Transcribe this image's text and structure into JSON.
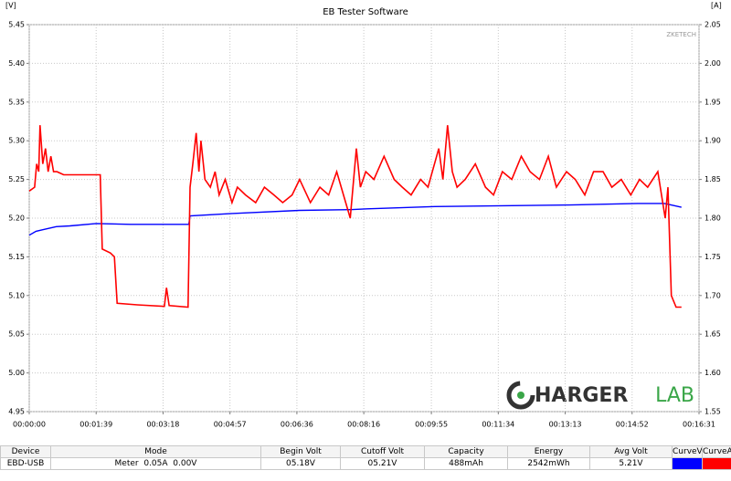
{
  "chart_data": {
    "type": "line",
    "title": "EB Tester Software",
    "y_unit": "[V]",
    "y2_unit": "[A]",
    "watermarks": [
      "ZKETECH",
      "HARGER",
      "LAB"
    ],
    "xlim": [
      0,
      991
    ],
    "xticks": [
      {
        "value": 0,
        "label": "00:00:00"
      },
      {
        "value": 99,
        "label": "00:01:39"
      },
      {
        "value": 198,
        "label": "00:03:18"
      },
      {
        "value": 297,
        "label": "00:04:57"
      },
      {
        "value": 396,
        "label": "00:06:36"
      },
      {
        "value": 495,
        "label": "00:08:16"
      },
      {
        "value": 595,
        "label": "00:09:55"
      },
      {
        "value": 694,
        "label": "00:11:34"
      },
      {
        "value": 793,
        "label": "00:13:13"
      },
      {
        "value": 892,
        "label": "00:14:52"
      },
      {
        "value": 991,
        "label": "00:16:31"
      }
    ],
    "ylim": [
      4.95,
      5.45
    ],
    "yticks": [
      {
        "value": 4.95,
        "label": "4.95"
      },
      {
        "value": 5.0,
        "label": "5.00"
      },
      {
        "value": 5.05,
        "label": "5.05"
      },
      {
        "value": 5.1,
        "label": "5.10"
      },
      {
        "value": 5.15,
        "label": "5.15"
      },
      {
        "value": 5.2,
        "label": "5.20"
      },
      {
        "value": 5.25,
        "label": "5.25"
      },
      {
        "value": 5.3,
        "label": "5.30"
      },
      {
        "value": 5.35,
        "label": "5.35"
      },
      {
        "value": 5.4,
        "label": "5.40"
      },
      {
        "value": 5.45,
        "label": "5.45"
      }
    ],
    "y2lim": [
      1.55,
      2.05
    ],
    "y2ticks": [
      {
        "value": 1.55,
        "label": "1.55"
      },
      {
        "value": 1.6,
        "label": "1.60"
      },
      {
        "value": 1.65,
        "label": "1.65"
      },
      {
        "value": 1.7,
        "label": "1.70"
      },
      {
        "value": 1.75,
        "label": "1.75"
      },
      {
        "value": 1.8,
        "label": "1.80"
      },
      {
        "value": 1.85,
        "label": "1.85"
      },
      {
        "value": 1.9,
        "label": "1.90"
      },
      {
        "value": 1.95,
        "label": "1.95"
      },
      {
        "value": 2.0,
        "label": "2.00"
      },
      {
        "value": 2.05,
        "label": "2.05"
      }
    ],
    "grid": true,
    "series": [
      {
        "name": "CurveV",
        "color": "#0000ff",
        "axis": "y",
        "x": [
          0,
          10,
          20,
          40,
          60,
          99,
          150,
          236,
          238,
          300,
          400,
          475,
          500,
          600,
          700,
          800,
          900,
          940,
          965
        ],
        "values": [
          5.178,
          5.183,
          5.185,
          5.189,
          5.19,
          5.193,
          5.192,
          5.192,
          5.203,
          5.206,
          5.21,
          5.211,
          5.212,
          5.215,
          5.216,
          5.217,
          5.219,
          5.219,
          5.214
        ]
      },
      {
        "name": "CurveA",
        "color": "#ff0000",
        "axis": "y2",
        "x": [
          0,
          8,
          11,
          14,
          16,
          20,
          24,
          28,
          32,
          36,
          41,
          51,
          65,
          78,
          105,
          108,
          120,
          126,
          130,
          160,
          200,
          203,
          207,
          235,
          238,
          242,
          247,
          251,
          254,
          260,
          268,
          275,
          281,
          290,
          300,
          308,
          320,
          335,
          348,
          362,
          375,
          389,
          400,
          416,
          430,
          443,
          455,
          465,
          475,
          484,
          490,
          498,
          510,
          525,
          540,
          552,
          565,
          579,
          590,
          606,
          612,
          619,
          626,
          633,
          645,
          660,
          675,
          687,
          700,
          714,
          728,
          741,
          755,
          768,
          780,
          795,
          808,
          822,
          835,
          849,
          862,
          876,
          890,
          903,
          915,
          930,
          941,
          945,
          950,
          957,
          965
        ],
        "values": [
          1.835,
          1.84,
          1.87,
          1.86,
          1.92,
          1.87,
          1.89,
          1.86,
          1.88,
          1.86,
          1.86,
          1.856,
          1.856,
          1.856,
          1.856,
          1.76,
          1.755,
          1.75,
          1.69,
          1.688,
          1.686,
          1.71,
          1.687,
          1.685,
          1.84,
          1.87,
          1.91,
          1.86,
          1.9,
          1.85,
          1.84,
          1.86,
          1.83,
          1.85,
          1.82,
          1.84,
          1.83,
          1.82,
          1.84,
          1.83,
          1.82,
          1.83,
          1.85,
          1.82,
          1.84,
          1.83,
          1.86,
          1.83,
          1.8,
          1.89,
          1.84,
          1.86,
          1.85,
          1.88,
          1.85,
          1.84,
          1.83,
          1.85,
          1.84,
          1.89,
          1.85,
          1.92,
          1.86,
          1.84,
          1.85,
          1.87,
          1.84,
          1.83,
          1.86,
          1.85,
          1.88,
          1.86,
          1.85,
          1.88,
          1.84,
          1.86,
          1.85,
          1.83,
          1.86,
          1.86,
          1.84,
          1.85,
          1.83,
          1.85,
          1.84,
          1.86,
          1.8,
          1.84,
          1.7,
          1.685,
          1.685
        ]
      }
    ]
  },
  "table": {
    "headers": [
      "Device",
      "Mode",
      "Begin Volt",
      "Cutoff Volt",
      "Capacity",
      "Energy",
      "Avg Volt",
      "CurveV",
      "CurveA"
    ],
    "rows": [
      [
        "EBD-USB",
        "Meter  0.05A  0.00V",
        "05.18V",
        "05.21V",
        "488mAh",
        "2542mWh",
        "5.21V"
      ]
    ]
  }
}
